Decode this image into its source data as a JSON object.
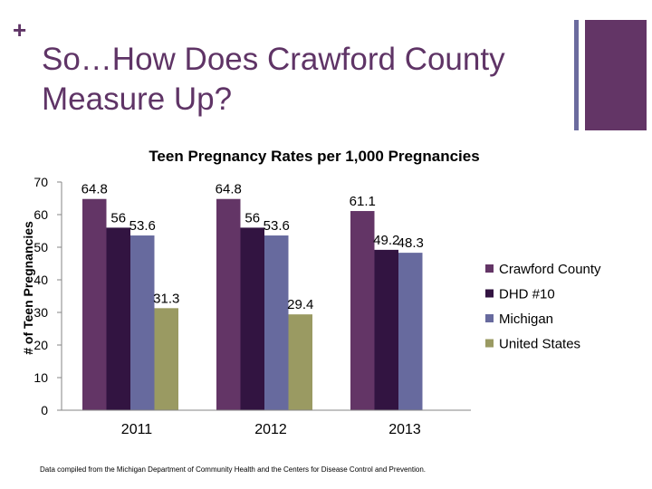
{
  "slide": {
    "plus": "+",
    "title": "So…How Does Crawford County Measure Up?",
    "footnote": "Data compiled from the Michigan Department of Community Health and the Centers for Disease Control and Prevention."
  },
  "chart_data": {
    "type": "bar",
    "title": "Teen Pregnancy Rates per 1,000 Pregnancies",
    "xlabel": "",
    "ylabel": "# of Teen Pregnancies",
    "categories": [
      "2011",
      "2012",
      "2013"
    ],
    "ylim": [
      0,
      70
    ],
    "yticks": [
      0,
      10,
      20,
      30,
      40,
      50,
      60,
      70
    ],
    "grid": false,
    "legend_position": "right",
    "series": [
      {
        "name": "Crawford County",
        "color": "#633566",
        "values": [
          64.8,
          64.8,
          61.1
        ],
        "labels": [
          "64.8",
          "64.8",
          "61.1"
        ]
      },
      {
        "name": "DHD #10",
        "color": "#321441",
        "values": [
          56,
          56,
          49.2
        ],
        "labels": [
          "56",
          "56",
          "49.2"
        ]
      },
      {
        "name": "Michigan",
        "color": "#676a9e",
        "values": [
          53.6,
          53.6,
          48.3
        ],
        "labels": [
          "53.6",
          "53.6",
          "48.3"
        ]
      },
      {
        "name": "United States",
        "color": "#9a9a62",
        "values": [
          31.3,
          29.4,
          null
        ],
        "labels": [
          "31.3",
          "29.4",
          null
        ]
      }
    ]
  }
}
